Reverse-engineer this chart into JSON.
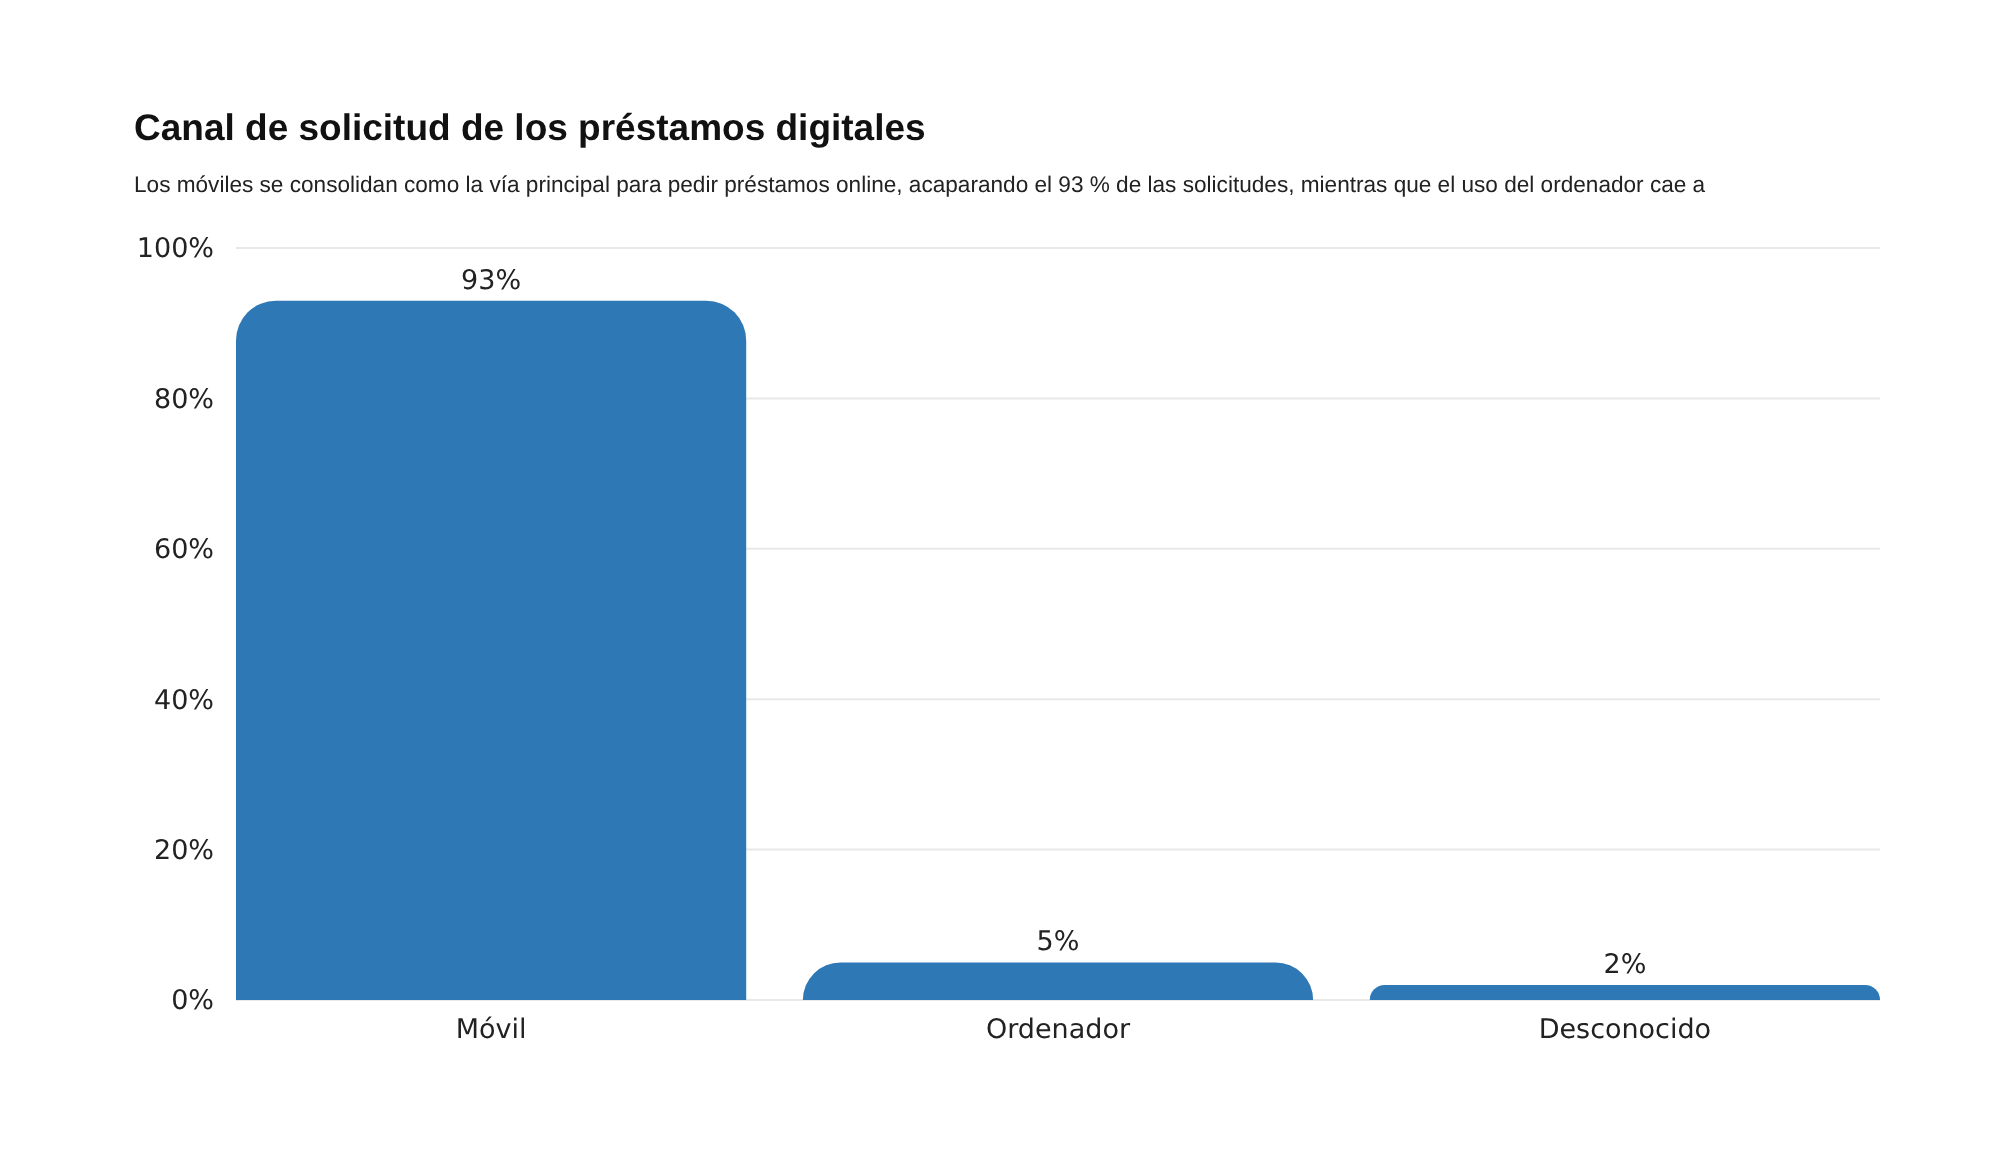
{
  "chart_data": {
    "type": "bar",
    "title": "Canal de solicitud de los préstamos digitales",
    "subtitle": "Los móviles se consolidan como la vía principal para pedir préstamos online, acaparando el 93 % de las solicitudes, mientras que el uso del ordenador cae a",
    "categories": [
      "Móvil",
      "Ordenador",
      "Desconocido"
    ],
    "values": [
      93,
      5,
      2
    ],
    "color": "#2e78b5",
    "value_labels": [
      "93%",
      "5%",
      "2%"
    ],
    "ylim": [
      0,
      100
    ],
    "yticks": [
      {
        "value": 0,
        "label": "0%"
      },
      {
        "value": 20,
        "label": "20%"
      },
      {
        "value": 40,
        "label": "40%"
      },
      {
        "value": 60,
        "label": "60%"
      },
      {
        "value": 80,
        "label": "80%"
      },
      {
        "value": 100,
        "label": "100%"
      }
    ],
    "grid": "y"
  }
}
